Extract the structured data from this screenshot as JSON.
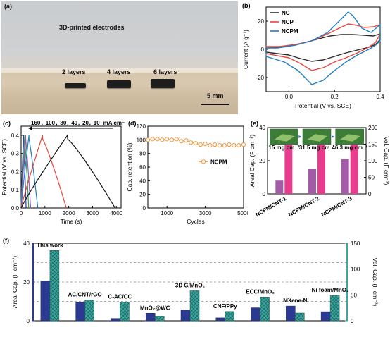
{
  "panel_a": {
    "label": "(a)",
    "caption": "3D-printed electrodes",
    "electrodes": [
      "2 layers",
      "4 layers",
      "6 layers"
    ],
    "scale_bar": "5 mm"
  },
  "chart_data": [
    {
      "id": "b",
      "label": "(b)",
      "type": "line",
      "xlabel": "Potential (V vs. SCE)",
      "ylabel": "Current (A g⁻¹)",
      "xlim": [
        -0.1,
        0.4
      ],
      "ylim": [
        -30,
        30
      ],
      "xticks": [
        0.0,
        0.2,
        0.4
      ],
      "xtick_labels": [
        "0.0",
        "0.2",
        "0.4"
      ],
      "yticks": [
        -20,
        0,
        20
      ],
      "grid": false,
      "legend": "top-left",
      "series": [
        {
          "name": "NC",
          "color": "#2b2b2b",
          "points": [
            [
              -0.1,
              -2
            ],
            [
              0.0,
              -4
            ],
            [
              0.05,
              -6.5
            ],
            [
              0.1,
              -8.5
            ],
            [
              0.15,
              -7.5
            ],
            [
              0.2,
              -5
            ],
            [
              0.25,
              -2.5
            ],
            [
              0.3,
              -0.5
            ],
            [
              0.35,
              1.5
            ],
            [
              0.38,
              3.5
            ],
            [
              0.4,
              7
            ],
            [
              0.4,
              11
            ],
            [
              0.37,
              9.5
            ],
            [
              0.33,
              10
            ],
            [
              0.28,
              10.5
            ],
            [
              0.23,
              10.5
            ],
            [
              0.18,
              9.5
            ],
            [
              0.12,
              7
            ],
            [
              0.05,
              4
            ],
            [
              0.0,
              2.5
            ],
            [
              -0.05,
              1.2
            ],
            [
              -0.1,
              1
            ]
          ]
        },
        {
          "name": "NCP",
          "color": "#e8453c",
          "points": [
            [
              -0.1,
              -3
            ],
            [
              0.0,
              -6
            ],
            [
              0.05,
              -10
            ],
            [
              0.1,
              -15
            ],
            [
              0.15,
              -13
            ],
            [
              0.2,
              -9
            ],
            [
              0.25,
              -6
            ],
            [
              0.3,
              -2.5
            ],
            [
              0.35,
              1.5
            ],
            [
              0.38,
              5
            ],
            [
              0.4,
              11
            ],
            [
              0.4,
              17.5
            ],
            [
              0.37,
              16
            ],
            [
              0.33,
              15.5
            ],
            [
              0.3,
              17
            ],
            [
              0.26,
              18
            ],
            [
              0.22,
              15
            ],
            [
              0.17,
              11
            ],
            [
              0.1,
              6
            ],
            [
              0.03,
              3.5
            ],
            [
              -0.04,
              2
            ],
            [
              -0.1,
              2
            ]
          ]
        },
        {
          "name": "NCPM",
          "color": "#1f7fbf",
          "points": [
            [
              -0.1,
              -5
            ],
            [
              -0.02,
              -9
            ],
            [
              0.04,
              -15
            ],
            [
              0.1,
              -25
            ],
            [
              0.15,
              -22
            ],
            [
              0.2,
              -15
            ],
            [
              0.25,
              -9
            ],
            [
              0.3,
              -4
            ],
            [
              0.35,
              0
            ],
            [
              0.38,
              3
            ],
            [
              0.4,
              6
            ],
            [
              0.4,
              17.5
            ],
            [
              0.36,
              12
            ],
            [
              0.32,
              15
            ],
            [
              0.28,
              24
            ],
            [
              0.26,
              26.5
            ],
            [
              0.22,
              20
            ],
            [
              0.17,
              12
            ],
            [
              0.1,
              6
            ],
            [
              0.03,
              3
            ],
            [
              -0.05,
              1
            ],
            [
              -0.1,
              1
            ]
          ]
        }
      ]
    },
    {
      "id": "c",
      "label": "(c)",
      "type": "line",
      "xlabel": "Time (s)",
      "ylabel": "Potential (V vs. SCE)",
      "xlim": [
        0,
        4200
      ],
      "ylim": [
        0,
        0.45
      ],
      "xticks": [
        0,
        1000,
        2000,
        3000,
        4000
      ],
      "xtick_labels": [
        "0",
        "1000",
        "2000",
        "3000",
        "4000"
      ],
      "yticks": [
        0,
        0.1,
        0.2,
        0.3,
        0.4
      ],
      "ytick_labels": [
        "0.0",
        "0.1",
        "0.2",
        "0.3",
        "0.4"
      ],
      "annotation": {
        "legend_values": [
          "160",
          "100",
          "80",
          "40",
          "20",
          "10"
        ],
        "unit": "mA cm⁻²"
      },
      "series": [
        {
          "name": "160",
          "color": "#2f3f9a",
          "t_peak": 100,
          "t_end": 210
        },
        {
          "name": "100",
          "color": "#2fa84f",
          "t_peak": 150,
          "t_end": 320
        },
        {
          "name": "80",
          "color": "#9b59b6",
          "t_peak": 190,
          "t_end": 400
        },
        {
          "name": "40",
          "color": "#1f7fbf",
          "t_peak": 330,
          "t_end": 700
        },
        {
          "name": "20",
          "color": "#e8453c",
          "t_peak": 900,
          "t_end": 1900
        },
        {
          "name": "10",
          "color": "#111111",
          "t_peak": 1950,
          "t_end": 3950
        }
      ]
    },
    {
      "id": "d",
      "label": "(d)",
      "type": "line",
      "xlabel": "Cycles",
      "ylabel": "Cap. retention (%)",
      "xlim": [
        0,
        5000
      ],
      "ylim": [
        0,
        120
      ],
      "xticks": [
        1000,
        3000,
        5000
      ],
      "yticks": [
        0,
        20,
        40,
        60,
        80,
        100,
        120
      ],
      "legend": "center-right",
      "series": [
        {
          "name": "NCPM",
          "color": "#f28c28",
          "x": [
            0,
            250,
            500,
            750,
            1000,
            1250,
            1500,
            1750,
            2000,
            2250,
            2500,
            2750,
            3000,
            3250,
            3500,
            3750,
            4000,
            4250,
            4500,
            4750,
            5000
          ],
          "y": [
            100,
            101,
            101,
            100,
            101,
            100,
            101,
            98,
            99,
            96,
            95,
            93,
            94,
            92,
            93,
            92,
            92,
            93,
            92,
            92,
            93
          ]
        }
      ]
    },
    {
      "id": "e",
      "label": "(e)",
      "type": "bar",
      "categories": [
        "NCPM/CNT-1",
        "NCPM/CNT-2",
        "NCPM/CNT-3"
      ],
      "insets": [
        "15 mg cm⁻²",
        "31.5 mg cm⁻²",
        "46.3 mg cm⁻²"
      ],
      "ylabel": "Areal Cap. (F cm⁻²)",
      "ylabel_right": "Vol. Cap. (F cm⁻³)",
      "ylim": [
        0,
        40
      ],
      "ylim_right": [
        0,
        200
      ],
      "yticks": [
        0,
        20,
        40
      ],
      "yticks_right": [
        0,
        50,
        100,
        150,
        200
      ],
      "series": [
        {
          "name": "Areal Cap.",
          "color": "#a35ba8",
          "axis": "left",
          "values": [
            8,
            15,
            21
          ]
        },
        {
          "name": "Vol. Cap.",
          "color": "#e83d8f",
          "axis": "right",
          "values": [
            182,
            163,
            155
          ]
        }
      ]
    },
    {
      "id": "f",
      "label": "(f)",
      "type": "bar",
      "categories": [
        "This work",
        "AC/CNT/rGO",
        "C-AC/CC",
        "MnO₂@WC",
        "3D G/MnO₂",
        "CNF/PPy",
        "ECC/MnO₂",
        "MXene-N",
        "Ni foam/MnO₂"
      ],
      "ylabel": "Areal Cap. (F cm⁻²)",
      "ylabel_right": "Vol. Cap. (F cm⁻³)",
      "ylim": [
        0,
        40
      ],
      "ylim_right": [
        0,
        150
      ],
      "yticks": [
        0,
        20,
        40
      ],
      "yticks_right": [
        0,
        50,
        100,
        150
      ],
      "grid": "dashed",
      "series": [
        {
          "name": "Areal Cap.",
          "color": "#2b3990",
          "axis": "left",
          "values": [
            20.5,
            9.5,
            1.2,
            3.9,
            5.6,
            1.5,
            6.7,
            7.6,
            4.7
          ]
        },
        {
          "name": "Vol. Cap.",
          "color": "#3aa8a0",
          "axis": "right",
          "values": [
            136,
            40,
            36,
            9,
            58,
            18,
            46,
            15,
            49
          ]
        }
      ]
    }
  ]
}
